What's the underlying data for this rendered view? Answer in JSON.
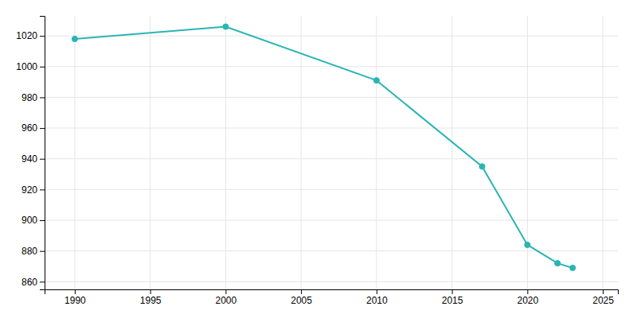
{
  "chart_data": {
    "type": "line",
    "x": [
      1990,
      2000,
      2010,
      2017,
      2020,
      2022,
      2023
    ],
    "values": [
      1018,
      1026,
      991,
      935,
      884,
      872,
      869
    ],
    "color": "#2ab5b5",
    "marker": "circle",
    "xlim": [
      1988,
      2026
    ],
    "ylim": [
      855,
      1033
    ],
    "xticks": [
      1990,
      1995,
      2000,
      2005,
      2010,
      2015,
      2020,
      2025
    ],
    "yticks": [
      860,
      880,
      900,
      920,
      940,
      960,
      980,
      1000,
      1020
    ],
    "grid": true
  }
}
